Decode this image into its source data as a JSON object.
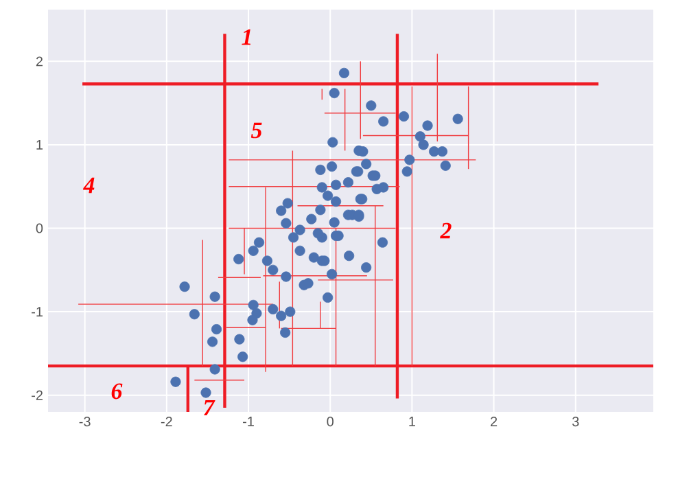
{
  "chart_data": {
    "type": "scatter",
    "xlim": [
      -3.45,
      3.95
    ],
    "ylim": [
      -2.2,
      2.62
    ],
    "xticks": [
      -3,
      -2,
      -1,
      0,
      1,
      2,
      3
    ],
    "yticks": [
      -2,
      -1,
      0,
      1,
      2
    ],
    "grid": true,
    "series": [
      {
        "color": "#4c72b0",
        "marker": "circle",
        "x": [
          0.17,
          0.05,
          0.5,
          0.65,
          0.9,
          1.19,
          1.56,
          1.1,
          1.14,
          1.27,
          1.37,
          1.41,
          0.97,
          0.94,
          0.4,
          0.03,
          0.34,
          0.44,
          0.55,
          0.57,
          0.65,
          0.37,
          0.27,
          0.35,
          0.64,
          0.1,
          -0.1,
          -0.12,
          0.02,
          0.35,
          0.32,
          0.52,
          -0.1,
          0.07,
          0.22,
          -0.03,
          0.07,
          0.39,
          -0.52,
          -0.6,
          -0.23,
          -0.12,
          0.05,
          0.22,
          0.35,
          -0.15,
          -0.37,
          -0.54,
          -0.87,
          -0.45,
          0.07,
          -1.12,
          -0.94,
          -0.77,
          -0.7,
          -0.54,
          -0.37,
          -0.2,
          -0.07,
          -0.32,
          -0.27,
          0.02,
          -0.03,
          0.23,
          0.44,
          -1.78,
          -1.41,
          -1.66,
          -0.94,
          -0.9,
          -0.95,
          -0.7,
          -0.6,
          -0.49,
          -0.55,
          -1.39,
          -1.44,
          -1.11,
          -1.07,
          -1.41,
          -1.89,
          -1.52,
          -0.1
        ],
        "values": [
          1.86,
          1.62,
          1.47,
          1.28,
          1.34,
          1.23,
          1.31,
          1.1,
          1.0,
          0.92,
          0.92,
          0.75,
          0.82,
          0.68,
          0.92,
          1.03,
          0.68,
          0.77,
          0.63,
          0.47,
          0.49,
          0.35,
          0.16,
          0.14,
          -0.17,
          -0.09,
          -0.11,
          0.7,
          0.74,
          0.93,
          0.68,
          0.63,
          0.49,
          0.52,
          0.55,
          0.39,
          0.32,
          0.35,
          0.3,
          0.21,
          0.11,
          0.22,
          0.07,
          0.16,
          0.16,
          -0.06,
          -0.02,
          0.06,
          -0.17,
          -0.11,
          -0.09,
          -0.37,
          -0.27,
          -0.39,
          -0.5,
          -0.58,
          -0.27,
          -0.35,
          -0.39,
          -0.68,
          -0.66,
          -0.55,
          -0.83,
          -0.33,
          -0.47,
          -0.7,
          -0.82,
          -1.03,
          -0.92,
          -1.02,
          -1.1,
          -0.97,
          -1.05,
          -1.0,
          -1.25,
          -1.21,
          -1.36,
          -1.33,
          -1.54,
          -1.69,
          -1.84,
          -1.97,
          -0.39
        ]
      },
      {
        "type": "line",
        "color": "#ee1c25",
        "marker": "none",
        "x": [
          -1.29,
          -1.29
        ],
        "values": [
          2.33,
          -2.15
        ]
      },
      {
        "type": "line",
        "color": "#ee1c25",
        "marker": "none",
        "x": [
          0.82,
          0.82
        ],
        "values": [
          2.33,
          -2.04
        ]
      },
      {
        "type": "line",
        "color": "#ee1c25",
        "marker": "none",
        "x": [
          -3.03,
          3.28
        ],
        "values": [
          1.73,
          1.73
        ]
      },
      {
        "type": "line",
        "color": "#ee1c25",
        "marker": "none",
        "x": [
          -3.45,
          3.95
        ],
        "values": [
          -1.65,
          -1.65
        ]
      },
      {
        "type": "line",
        "color": "#ee1c25",
        "marker": "none",
        "x": [
          -1.74,
          -1.74
        ],
        "values": [
          -1.65,
          -2.2
        ]
      },
      {
        "type": "line",
        "color": "#f03c40",
        "marker": "none",
        "x": [
          -1.24,
          1.78
        ],
        "values": [
          0.82,
          0.82
        ]
      },
      {
        "type": "line",
        "color": "#f03c40",
        "marker": "none",
        "x": [
          -1.24,
          0.85
        ],
        "values": [
          0.5,
          0.5
        ]
      },
      {
        "type": "line",
        "color": "#f03c40",
        "marker": "none",
        "x": [
          -1.24,
          0.8
        ],
        "values": [
          0.0,
          0.0
        ]
      },
      {
        "type": "line",
        "color": "#f03c40",
        "marker": "none",
        "x": [
          -0.46,
          -0.46
        ],
        "values": [
          0.93,
          -1.65
        ]
      },
      {
        "type": "line",
        "color": "#f03c40",
        "marker": "none",
        "x": [
          -0.79,
          -0.79
        ],
        "values": [
          0.49,
          -1.72
        ]
      },
      {
        "type": "line",
        "color": "#f03c40",
        "marker": "none",
        "x": [
          -0.4,
          0.65
        ],
        "values": [
          0.27,
          0.27
        ]
      },
      {
        "type": "line",
        "color": "#f03c40",
        "marker": "none",
        "x": [
          -0.07,
          0.8
        ],
        "values": [
          1.38,
          1.38
        ]
      },
      {
        "type": "line",
        "color": "#f03c40",
        "marker": "none",
        "x": [
          0.37,
          0.37
        ],
        "values": [
          2.0,
          1.07
        ]
      },
      {
        "type": "line",
        "color": "#f03c40",
        "marker": "none",
        "x": [
          0.4,
          1.69
        ],
        "values": [
          1.11,
          1.11
        ]
      },
      {
        "type": "line",
        "color": "#f03c40",
        "marker": "none",
        "x": [
          1.31,
          1.31
        ],
        "values": [
          2.09,
          1.04
        ]
      },
      {
        "type": "line",
        "color": "#f03c40",
        "marker": "none",
        "x": [
          1.69,
          1.69
        ],
        "values": [
          1.7,
          0.71
        ]
      },
      {
        "type": "line",
        "color": "#f03c40",
        "marker": "none",
        "x": [
          1.0,
          1.0
        ],
        "values": [
          1.7,
          -1.65
        ]
      },
      {
        "type": "line",
        "color": "#f03c40",
        "marker": "none",
        "x": [
          0.55,
          0.55
        ],
        "values": [
          0.27,
          -1.65
        ]
      },
      {
        "type": "line",
        "color": "#f03c40",
        "marker": "none",
        "x": [
          -0.15,
          0.77
        ],
        "values": [
          -0.62,
          -0.62
        ]
      },
      {
        "type": "line",
        "color": "#f03c40",
        "marker": "none",
        "x": [
          0.07,
          0.07
        ],
        "values": [
          0.0,
          -1.65
        ]
      },
      {
        "type": "line",
        "color": "#f03c40",
        "marker": "none",
        "x": [
          -1.27,
          -0.79
        ],
        "values": [
          -1.19,
          -1.19
        ]
      },
      {
        "type": "line",
        "color": "#f03c40",
        "marker": "none",
        "x": [
          -0.6,
          0.07
        ],
        "values": [
          -1.2,
          -1.2
        ]
      },
      {
        "type": "line",
        "color": "#f03c40",
        "marker": "none",
        "x": [
          -3.08,
          -0.7
        ],
        "values": [
          -0.91,
          -0.91
        ]
      },
      {
        "type": "line",
        "color": "#f03c40",
        "marker": "none",
        "x": [
          -1.56,
          -1.56
        ],
        "values": [
          -0.14,
          -1.65
        ]
      },
      {
        "type": "line",
        "color": "#f03c40",
        "marker": "none",
        "x": [
          -1.37,
          -0.85
        ],
        "values": [
          -0.59,
          -0.59
        ]
      },
      {
        "type": "line",
        "color": "#f03c40",
        "marker": "none",
        "x": [
          -0.82,
          0.45
        ],
        "values": [
          -0.57,
          -0.57
        ]
      },
      {
        "type": "line",
        "color": "#f03c40",
        "marker": "none",
        "x": [
          -1.66,
          -1.05
        ],
        "values": [
          -1.82,
          -1.82
        ]
      },
      {
        "type": "line",
        "color": "#f03c40",
        "marker": "none",
        "x": [
          -1.05,
          -1.05
        ],
        "values": [
          0.0,
          -0.55
        ]
      },
      {
        "type": "line",
        "color": "#f03c40",
        "marker": "none",
        "x": [
          -0.12,
          -0.12
        ],
        "values": [
          -0.88,
          -1.2
        ]
      },
      {
        "type": "line",
        "color": "#f03c40",
        "marker": "none",
        "x": [
          -0.62,
          -0.62
        ],
        "values": [
          -0.64,
          -1.2
        ]
      },
      {
        "type": "line",
        "color": "#f03c40",
        "marker": "none",
        "x": [
          0.18,
          0.18
        ],
        "values": [
          1.67,
          0.93
        ]
      },
      {
        "type": "line",
        "color": "#f03c40",
        "marker": "none",
        "x": [
          -0.1,
          -0.1
        ],
        "values": [
          1.67,
          1.54
        ]
      }
    ],
    "annotations": [
      "1",
      "5",
      "4",
      "2",
      "6",
      "7"
    ]
  }
}
